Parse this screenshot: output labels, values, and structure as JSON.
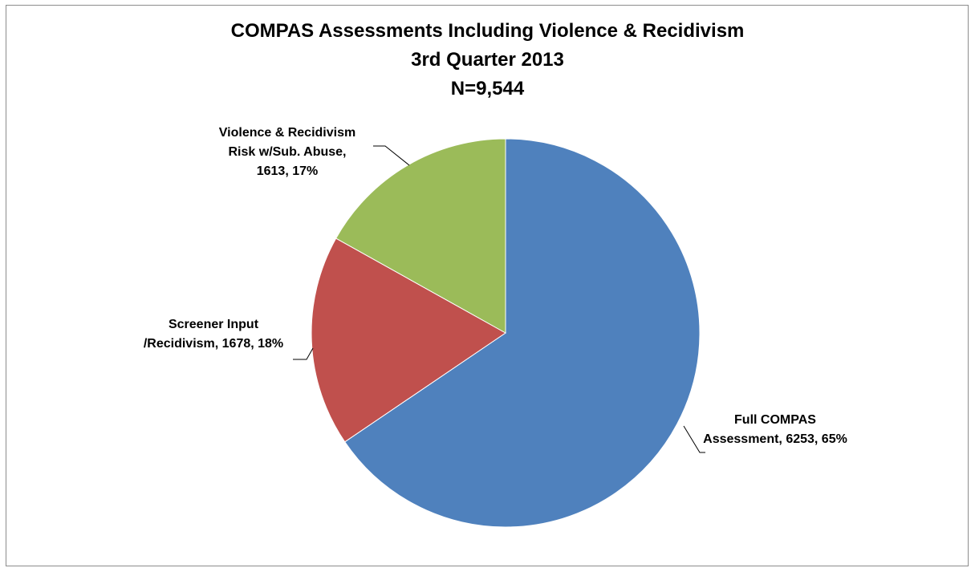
{
  "chart_data": {
    "type": "pie",
    "title": "COMPAS Assessments Including Violence & Recidivism",
    "subtitle": "3rd Quarter 2013",
    "total_label": "N=9,544",
    "slices": [
      {
        "name": "Full COMPAS Assessment",
        "value": 6253,
        "percent": 65,
        "color": "#4f81bd",
        "label_lines": [
          "Full COMPAS",
          "Assessment, 6253, 65%"
        ]
      },
      {
        "name": "Screener Input /Recidivism",
        "value": 1678,
        "percent": 18,
        "color": "#c0504d",
        "label_lines": [
          "Screener Input",
          "/Recidivism, 1678, 18%"
        ]
      },
      {
        "name": "Violence & Recidivism Risk w/Sub. Abuse",
        "value": 1613,
        "percent": 17,
        "color": "#9bbb59",
        "label_lines": [
          "Violence & Recidivism",
          "Risk w/Sub. Abuse,",
          "1613, 17%"
        ]
      }
    ]
  }
}
